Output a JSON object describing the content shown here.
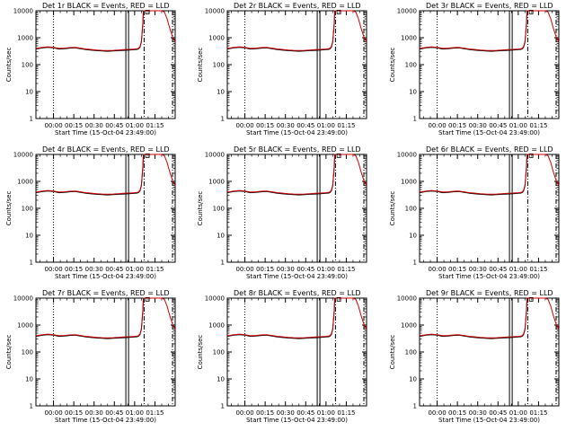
{
  "chart_data": [
    {
      "type": "line",
      "title": "Det 1r BLACK = Events, RED = LLD",
      "xlabel": "Start Time (15-Oct-04 23:49:00)",
      "ylabel": "Counts/sec",
      "yscale": "log",
      "ylim": [
        1,
        10000
      ],
      "yticks": [
        "1",
        "10",
        "100",
        "1000",
        "10000"
      ],
      "xticks": [
        "00:00",
        "00:15",
        "00:30",
        "00:45",
        "01:00",
        "01:15"
      ]
    },
    {
      "type": "line",
      "title": "Det 2r BLACK = Events, RED = LLD",
      "xlabel": "Start Time (15-Oct-04 23:49:00)",
      "ylabel": "Counts/sec",
      "yscale": "log",
      "ylim": [
        1,
        10000
      ],
      "yticks": [
        "1",
        "10",
        "100",
        "1000",
        "10000"
      ],
      "xticks": [
        "00:00",
        "00:15",
        "00:30",
        "00:45",
        "01:00",
        "01:15"
      ]
    },
    {
      "type": "line",
      "title": "Det 3r BLACK = Events, RED = LLD",
      "xlabel": "Start Time (15-Oct-04 23:49:00)",
      "ylabel": "Counts/sec",
      "yscale": "log",
      "ylim": [
        1,
        10000
      ],
      "yticks": [
        "1",
        "10",
        "100",
        "1000",
        "10000"
      ],
      "xticks": [
        "00:00",
        "00:15",
        "00:30",
        "00:45",
        "01:00",
        "01:15"
      ]
    },
    {
      "type": "line",
      "title": "Det 4r BLACK = Events, RED = LLD",
      "xlabel": "Start Time (15-Oct-04 23:49:00)",
      "ylabel": "Counts/sec",
      "yscale": "log",
      "ylim": [
        1,
        10000
      ],
      "yticks": [
        "1",
        "10",
        "100",
        "1000",
        "10000"
      ],
      "xticks": [
        "00:00",
        "00:15",
        "00:30",
        "00:45",
        "01:00",
        "01:15"
      ]
    },
    {
      "type": "line",
      "title": "Det 5r BLACK = Events, RED = LLD",
      "xlabel": "Start Time (15-Oct-04 23:49:00)",
      "ylabel": "Counts/sec",
      "yscale": "log",
      "ylim": [
        1,
        10000
      ],
      "yticks": [
        "1",
        "10",
        "100",
        "1000",
        "10000"
      ],
      "xticks": [
        "00:00",
        "00:15",
        "00:30",
        "00:45",
        "01:00",
        "01:15"
      ]
    },
    {
      "type": "line",
      "title": "Det 6r BLACK = Events, RED = LLD",
      "xlabel": "Start Time (15-Oct-04 23:49:00)",
      "ylabel": "Counts/sec",
      "yscale": "log",
      "ylim": [
        1,
        10000
      ],
      "yticks": [
        "1",
        "10",
        "100",
        "1000",
        "10000"
      ],
      "xticks": [
        "00:00",
        "00:15",
        "00:30",
        "00:45",
        "01:00",
        "01:15"
      ]
    },
    {
      "type": "line",
      "title": "Det 7r BLACK = Events, RED = LLD",
      "xlabel": "Start Time (15-Oct-04 23:49:00)",
      "ylabel": "Counts/sec",
      "yscale": "log",
      "ylim": [
        1,
        10000
      ],
      "yticks": [
        "1",
        "10",
        "100",
        "1000",
        "10000"
      ],
      "xticks": [
        "00:00",
        "00:15",
        "00:30",
        "00:45",
        "01:00",
        "01:15"
      ]
    },
    {
      "type": "line",
      "title": "Det 8r BLACK = Events, RED = LLD",
      "xlabel": "Start Time (15-Oct-04 23:49:00)",
      "ylabel": "Counts/sec",
      "yscale": "log",
      "ylim": [
        1,
        10000
      ],
      "yticks": [
        "1",
        "10",
        "100",
        "1000",
        "10000"
      ],
      "xticks": [
        "00:00",
        "00:15",
        "00:30",
        "00:45",
        "01:00",
        "01:15"
      ]
    },
    {
      "type": "line",
      "title": "Det 9r BLACK = Events, RED = LLD",
      "xlabel": "Start Time (15-Oct-04 23:49:00)",
      "ylabel": "Counts/sec",
      "yscale": "log",
      "ylim": [
        1,
        10000
      ],
      "yticks": [
        "1",
        "10",
        "100",
        "1000",
        "10000"
      ],
      "xticks": [
        "00:00",
        "00:15",
        "00:30",
        "00:45",
        "01:00",
        "01:15"
      ]
    }
  ],
  "shared": {
    "xrange_minutes": [
      -13,
      90
    ],
    "series": [
      {
        "name": "Events",
        "color": "#000000",
        "x": [
          -13,
          -8,
          -4,
          0,
          4,
          8,
          12,
          16,
          20,
          24,
          28,
          32,
          36,
          40,
          44,
          48,
          52,
          56,
          60,
          62,
          63,
          64,
          65,
          66,
          66.5
        ],
        "y": [
          380,
          420,
          440,
          420,
          380,
          390,
          410,
          420,
          390,
          360,
          345,
          330,
          320,
          315,
          320,
          330,
          340,
          350,
          360,
          370,
          390,
          450,
          700,
          3000,
          10000
        ]
      },
      {
        "name": "LLD",
        "color": "#cc0000",
        "x": [
          -13,
          -8,
          -4,
          0,
          4,
          8,
          12,
          16,
          20,
          24,
          28,
          32,
          36,
          40,
          44,
          48,
          52,
          56,
          60,
          62,
          63,
          64,
          65,
          66,
          66.5,
          68,
          69,
          70,
          71,
          72,
          74,
          76,
          78,
          80,
          82,
          84,
          86,
          88,
          90
        ],
        "y": [
          400,
          440,
          460,
          440,
          400,
          410,
          430,
          440,
          410,
          380,
          365,
          350,
          340,
          335,
          340,
          350,
          360,
          370,
          380,
          390,
          410,
          480,
          750,
          3200,
          10000,
          10000,
          10000,
          10000,
          10000,
          10000,
          10000,
          10000,
          10000,
          10000,
          9000,
          5000,
          2200,
          1100,
          700
        ]
      }
    ],
    "vlines": [
      {
        "x": 0,
        "style": "dotted"
      },
      {
        "x": 53.5,
        "style": "solid"
      },
      {
        "x": 55.5,
        "style": "solid"
      },
      {
        "x": 67,
        "style": "dashdot"
      },
      {
        "x": 88,
        "style": "dashdot"
      }
    ]
  }
}
